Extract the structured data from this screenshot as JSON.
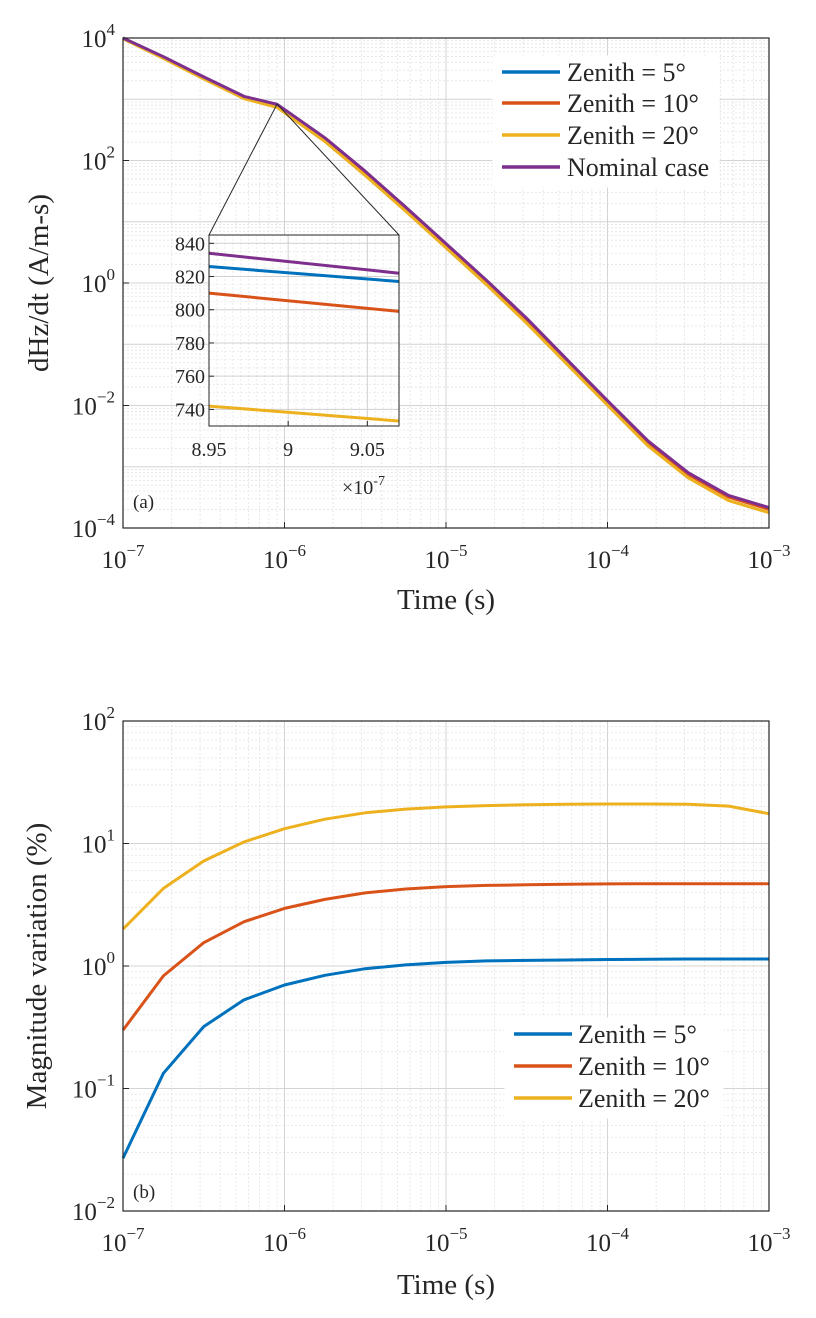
{
  "colors": {
    "zenith5": "#0072BD",
    "zenith10": "#D95319",
    "zenith20": "#EDB120",
    "nominal": "#7E2F8E"
  },
  "chart_data": [
    {
      "id": "a",
      "type": "line",
      "scale": "loglog",
      "panel_label": "(a)",
      "xlabel": "Time (s)",
      "ylabel": "dHz/dt (A/m-s)",
      "xlim": [
        1e-07,
        0.001
      ],
      "ylim": [
        0.0001,
        10000.0
      ],
      "grid": true,
      "legend_position": "top-right",
      "x_ticks": [
        {
          "base": "10",
          "exp": "−7"
        },
        {
          "base": "10",
          "exp": "−6"
        },
        {
          "base": "10",
          "exp": "−5"
        },
        {
          "base": "10",
          "exp": "−4"
        },
        {
          "base": "10",
          "exp": "−3"
        }
      ],
      "y_ticks": [
        {
          "base": "10",
          "exp": "−4"
        },
        {
          "base": "10",
          "exp": "−2"
        },
        {
          "base": "10",
          "exp": "0"
        },
        {
          "base": "10",
          "exp": "2"
        },
        {
          "base": "10",
          "exp": "4"
        }
      ],
      "x": [
        1e-07,
        1.78e-07,
        3.16e-07,
        5.62e-07,
        9e-07,
        1.78e-06,
        3.16e-06,
        5.62e-06,
        1e-05,
        1.78e-05,
        3.16e-05,
        5.62e-05,
        0.0001,
        0.000178,
        0.000316,
        0.000562,
        0.001
      ],
      "series": [
        {
          "name": "Zenith = 5°",
          "color_key": "zenith5",
          "values": [
            10000,
            4900,
            2300,
            1100,
            822,
            232,
            66,
            17.2,
            4.35,
            1.1,
            0.26,
            0.055,
            0.0118,
            0.0026,
            0.00078,
            0.00033,
            0.00021
          ]
        },
        {
          "name": "Zenith = 10°",
          "color_key": "zenith10",
          "values": [
            9900,
            4850,
            2260,
            1080,
            806,
            227,
            64,
            16.8,
            4.24,
            1.07,
            0.25,
            0.053,
            0.0114,
            0.0025,
            0.00075,
            0.00032,
            0.000202
          ]
        },
        {
          "name": "Zenith = 20°",
          "color_key": "zenith20",
          "values": [
            9700,
            4650,
            2150,
            1020,
            736,
            204,
            57,
            14.9,
            3.75,
            0.94,
            0.22,
            0.047,
            0.0101,
            0.0022,
            0.00066,
            0.00028,
            0.000178
          ]
        },
        {
          "name": "Nominal case",
          "color_key": "nominal",
          "values": [
            10000,
            4950,
            2320,
            1115,
            828,
            235,
            67,
            17.4,
            4.4,
            1.11,
            0.265,
            0.056,
            0.012,
            0.00265,
            0.0008,
            0.00034,
            0.000215
          ]
        }
      ],
      "inset": {
        "xlim": [
          8.95e-07,
          9.07e-07
        ],
        "ylim": [
          730,
          845
        ],
        "x_tick_labels": [
          "8.95",
          "9",
          "9.05"
        ],
        "x_tick_values": [
          8.95e-07,
          9e-07,
          9.05e-07
        ],
        "y_tick_labels": [
          "740",
          "760",
          "780",
          "800",
          "820",
          "840"
        ],
        "y_tick_values": [
          740,
          760,
          780,
          800,
          820,
          840
        ],
        "exponent_label_base": "×10",
        "exponent_label_exp": "-7",
        "series": [
          {
            "name": "Zenith = 5°",
            "color_key": "zenith5",
            "start": 826,
            "end": 817
          },
          {
            "name": "Zenith = 10°",
            "color_key": "zenith10",
            "start": 810,
            "end": 799
          },
          {
            "name": "Zenith = 20°",
            "color_key": "zenith20",
            "start": 742,
            "end": 733
          },
          {
            "name": "Nominal case",
            "color_key": "nominal",
            "start": 834,
            "end": 822
          }
        ]
      }
    },
    {
      "id": "b",
      "type": "line",
      "scale": "loglog",
      "panel_label": "(b)",
      "xlabel": "Time (s)",
      "ylabel": "Magnitude variation (%)",
      "xlim": [
        1e-07,
        0.001
      ],
      "ylim": [
        0.01,
        100.0
      ],
      "grid": true,
      "legend_position": "bottom-right",
      "x_ticks": [
        {
          "base": "10",
          "exp": "−7"
        },
        {
          "base": "10",
          "exp": "−6"
        },
        {
          "base": "10",
          "exp": "−5"
        },
        {
          "base": "10",
          "exp": "−4"
        },
        {
          "base": "10",
          "exp": "−3"
        }
      ],
      "y_ticks": [
        {
          "base": "10",
          "exp": "−2"
        },
        {
          "base": "10",
          "exp": "−1"
        },
        {
          "base": "10",
          "exp": "0"
        },
        {
          "base": "10",
          "exp": "1"
        },
        {
          "base": "10",
          "exp": "2"
        }
      ],
      "x": [
        1e-07,
        1.78e-07,
        3.16e-07,
        5.62e-07,
        1e-06,
        1.78e-06,
        3.16e-06,
        5.62e-06,
        1e-05,
        1.78e-05,
        3.16e-05,
        5.62e-05,
        0.0001,
        0.000178,
        0.000316,
        0.000562,
        0.001
      ],
      "series": [
        {
          "name": "Zenith = 5°",
          "color_key": "zenith5",
          "values": [
            0.027,
            0.133,
            0.32,
            0.53,
            0.7,
            0.84,
            0.95,
            1.02,
            1.07,
            1.1,
            1.11,
            1.12,
            1.13,
            1.135,
            1.14,
            1.14,
            1.14
          ]
        },
        {
          "name": "Zenith = 10°",
          "color_key": "zenith10",
          "values": [
            0.3,
            0.83,
            1.55,
            2.3,
            2.95,
            3.5,
            3.95,
            4.25,
            4.45,
            4.55,
            4.6,
            4.65,
            4.68,
            4.7,
            4.7,
            4.7,
            4.7
          ]
        },
        {
          "name": "Zenith = 20°",
          "color_key": "zenith20",
          "values": [
            2.0,
            4.3,
            7.2,
            10.3,
            13.2,
            15.8,
            17.8,
            19.1,
            19.9,
            20.4,
            20.7,
            20.9,
            21.0,
            21.0,
            20.9,
            20.2,
            17.5
          ]
        }
      ]
    }
  ]
}
